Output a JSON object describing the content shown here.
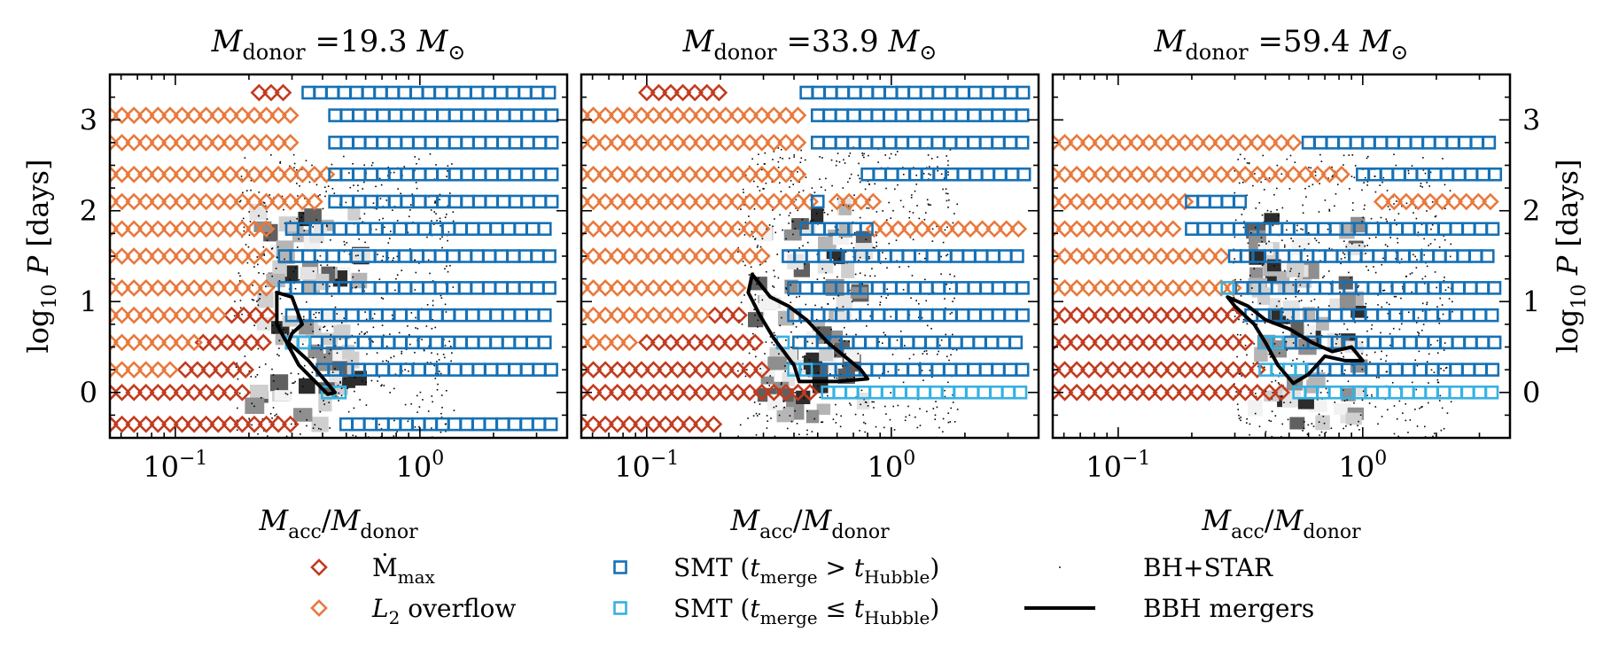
{
  "chart_data": [
    {
      "type": "scatter",
      "title": "M_donor =19.3 M⊙",
      "title_parts": {
        "lhs": "M",
        "lhs_sub": "donor",
        "rhs": " =19.3 ",
        "unit": "M",
        "unit_sub": "⊙"
      },
      "xlabel": "M_acc/M_donor",
      "ylabel": "log10 P [days]",
      "xscale": "log",
      "xlim": [
        0.054,
        4.0
      ],
      "ylim": [
        -0.5,
        3.5
      ],
      "x_ticks": [
        "10^-1",
        "10^0"
      ],
      "y_ticks": [
        0,
        1,
        2,
        3
      ],
      "series": [
        {
          "name": "Ṁmax",
          "rows": [
            {
              "y": 0.0,
              "x_from": 0.054,
              "x_to": 0.2
            },
            {
              "y": -0.35,
              "x_from": 0.054,
              "x_to": 0.3
            },
            {
              "y": 0.25,
              "x_from": 0.11,
              "x_to": 0.2
            },
            {
              "y": 0.55,
              "x_from": 0.13,
              "x_to": 0.23
            },
            {
              "y": 0.85,
              "x_from": 0.17,
              "x_to": 0.25
            },
            {
              "y": 3.3,
              "x_from": 0.22,
              "x_to": 0.3
            }
          ]
        },
        {
          "name": "L2 overflow",
          "rows": [
            {
              "y": 0.25,
              "x_from": 0.054,
              "x_to": 0.1
            },
            {
              "y": 0.55,
              "x_from": 0.054,
              "x_to": 0.12
            },
            {
              "y": 0.85,
              "x_from": 0.054,
              "x_to": 0.16
            },
            {
              "y": 1.15,
              "x_from": 0.054,
              "x_to": 0.24
            },
            {
              "y": 1.5,
              "x_from": 0.054,
              "x_to": 0.25
            },
            {
              "y": 1.8,
              "x_from": 0.054,
              "x_to": 0.25
            },
            {
              "y": 2.1,
              "x_from": 0.054,
              "x_to": 0.4
            },
            {
              "y": 2.4,
              "x_from": 0.054,
              "x_to": 0.42
            },
            {
              "y": 2.75,
              "x_from": 0.054,
              "x_to": 0.3
            },
            {
              "y": 3.05,
              "x_from": 0.054,
              "x_to": 0.3
            }
          ]
        },
        {
          "name": "SMT (t_merge > t_Hubble)",
          "rows": [
            {
              "y": -0.35,
              "x_from": 0.5,
              "x_to": 3.6
            },
            {
              "y": 0.25,
              "x_from": 0.4,
              "x_to": 3.6
            },
            {
              "y": 0.55,
              "x_from": 0.3,
              "x_to": 3.6
            },
            {
              "y": 0.85,
              "x_from": 0.3,
              "x_to": 3.6
            },
            {
              "y": 1.15,
              "x_from": 0.28,
              "x_to": 3.6
            },
            {
              "y": 1.5,
              "x_from": 0.28,
              "x_to": 3.6
            },
            {
              "y": 1.8,
              "x_from": 0.3,
              "x_to": 3.6
            },
            {
              "y": 2.1,
              "x_from": 0.45,
              "x_to": 3.6
            },
            {
              "y": 2.4,
              "x_from": 0.45,
              "x_to": 3.6
            },
            {
              "y": 2.75,
              "x_from": 0.45,
              "x_to": 3.6
            },
            {
              "y": 3.05,
              "x_from": 0.45,
              "x_to": 3.6
            },
            {
              "y": 3.3,
              "x_from": 0.35,
              "x_to": 3.6
            }
          ]
        },
        {
          "name": "SMT (t_merge ≤ t_Hubble)",
          "rows": [
            {
              "y": 0.0,
              "x_from": 0.42,
              "x_to": 0.48
            },
            {
              "y": 0.55,
              "x_from": 0.3,
              "x_to": 0.35
            }
          ]
        }
      ],
      "bbh_contour": [
        [
          0.26,
          1.1
        ],
        [
          0.3,
          1.05
        ],
        [
          0.33,
          0.75
        ],
        [
          0.3,
          0.65
        ],
        [
          0.29,
          0.55
        ],
        [
          0.35,
          0.35
        ],
        [
          0.45,
          0.0
        ],
        [
          0.42,
          -0.02
        ],
        [
          0.32,
          0.3
        ],
        [
          0.26,
          0.75
        ],
        [
          0.26,
          1.1
        ]
      ]
    },
    {
      "type": "scatter",
      "title": "M_donor =33.9 M⊙",
      "title_parts": {
        "lhs": "M",
        "lhs_sub": "donor",
        "rhs": " =33.9 ",
        "unit": "M",
        "unit_sub": "⊙"
      },
      "xlabel": "M_acc/M_donor",
      "xscale": "log",
      "xlim": [
        0.054,
        4.0
      ],
      "ylim": [
        -0.5,
        3.5
      ],
      "x_ticks": [
        "10^-1",
        "10^0"
      ],
      "series": [
        {
          "name": "Ṁmax",
          "rows": [
            {
              "y": -0.35,
              "x_from": 0.054,
              "x_to": 0.19
            },
            {
              "y": 0.0,
              "x_from": 0.054,
              "x_to": 0.5
            },
            {
              "y": 0.25,
              "x_from": 0.054,
              "x_to": 0.32
            },
            {
              "y": 0.55,
              "x_from": 0.1,
              "x_to": 0.28
            },
            {
              "y": 0.85,
              "x_from": 0.19,
              "x_to": 0.26
            },
            {
              "y": 3.3,
              "x_from": 0.1,
              "x_to": 0.21
            }
          ]
        },
        {
          "name": "L2 overflow",
          "rows": [
            {
              "y": 0.55,
              "x_from": 0.054,
              "x_to": 0.09
            },
            {
              "y": 0.85,
              "x_from": 0.054,
              "x_to": 0.17
            },
            {
              "y": 1.15,
              "x_from": 0.054,
              "x_to": 0.26
            },
            {
              "y": 1.5,
              "x_from": 0.054,
              "x_to": 0.3
            },
            {
              "y": 1.8,
              "x_from": 0.054,
              "x_to": 0.3
            },
            {
              "y": 1.8,
              "x_from": 0.85,
              "x_to": 3.6
            },
            {
              "y": 2.1,
              "x_from": 0.054,
              "x_to": 0.5
            },
            {
              "y": 2.1,
              "x_from": 0.6,
              "x_to": 0.85
            },
            {
              "y": 2.4,
              "x_from": 0.054,
              "x_to": 0.42
            },
            {
              "y": 2.75,
              "x_from": 0.054,
              "x_to": 0.45
            },
            {
              "y": 3.05,
              "x_from": 0.054,
              "x_to": 0.45
            }
          ]
        },
        {
          "name": "SMT (t_merge > t_Hubble)",
          "rows": [
            {
              "y": 0.25,
              "x_from": 0.5,
              "x_to": 3.6
            },
            {
              "y": 0.55,
              "x_from": 0.42,
              "x_to": 3.6
            },
            {
              "y": 0.85,
              "x_from": 0.4,
              "x_to": 3.6
            },
            {
              "y": 1.15,
              "x_from": 0.4,
              "x_to": 3.6
            },
            {
              "y": 1.5,
              "x_from": 0.38,
              "x_to": 3.6
            },
            {
              "y": 1.8,
              "x_from": 0.45,
              "x_to": 0.8
            },
            {
              "y": 2.1,
              "x_from": 0.5,
              "x_to": 0.55
            },
            {
              "y": 2.4,
              "x_from": 0.8,
              "x_to": 3.6
            },
            {
              "y": 2.75,
              "x_from": 0.5,
              "x_to": 3.6
            },
            {
              "y": 3.05,
              "x_from": 0.5,
              "x_to": 3.6
            },
            {
              "y": 3.3,
              "x_from": 0.45,
              "x_to": 3.6
            }
          ]
        },
        {
          "name": "SMT (t_merge ≤ t_Hubble)",
          "rows": [
            {
              "y": 0.0,
              "x_from": 0.55,
              "x_to": 3.6
            },
            {
              "y": 0.25,
              "x_from": 0.4,
              "x_to": 0.48
            },
            {
              "y": 0.55,
              "x_from": 0.36,
              "x_to": 0.4
            }
          ]
        }
      ],
      "bbh_contour": [
        [
          0.27,
          1.3
        ],
        [
          0.32,
          1.05
        ],
        [
          0.38,
          0.95
        ],
        [
          0.45,
          0.8
        ],
        [
          0.55,
          0.55
        ],
        [
          0.75,
          0.25
        ],
        [
          0.8,
          0.15
        ],
        [
          0.6,
          0.12
        ],
        [
          0.42,
          0.12
        ],
        [
          0.4,
          0.3
        ],
        [
          0.33,
          0.6
        ],
        [
          0.29,
          0.85
        ],
        [
          0.26,
          1.1
        ],
        [
          0.27,
          1.3
        ]
      ]
    },
    {
      "type": "scatter",
      "title": "M_donor =59.4 M⊙",
      "title_parts": {
        "lhs": "M",
        "lhs_sub": "donor",
        "rhs": " =59.4 ",
        "unit": "M",
        "unit_sub": "⊙"
      },
      "xlabel": "M_acc/M_donor",
      "ylabel": "log10 P [days]",
      "xscale": "log",
      "xlim": [
        0.054,
        4.0
      ],
      "ylim": [
        -0.5,
        3.5
      ],
      "x_ticks": [
        "10^-1",
        "10^0"
      ],
      "y_ticks": [
        0,
        1,
        2,
        3
      ],
      "series": [
        {
          "name": "Ṁmax",
          "rows": [
            {
              "y": 0.0,
              "x_from": 0.054,
              "x_to": 0.5
            },
            {
              "y": 0.25,
              "x_from": 0.054,
              "x_to": 0.4
            },
            {
              "y": 0.55,
              "x_from": 0.054,
              "x_to": 0.35
            },
            {
              "y": 0.85,
              "x_from": 0.054,
              "x_to": 0.3
            }
          ]
        },
        {
          "name": "L2 overflow",
          "rows": [
            {
              "y": 1.15,
              "x_from": 0.054,
              "x_to": 0.3
            },
            {
              "y": 1.5,
              "x_from": 0.054,
              "x_to": 0.28
            },
            {
              "y": 1.8,
              "x_from": 0.054,
              "x_to": 0.18
            },
            {
              "y": 2.1,
              "x_from": 0.054,
              "x_to": 0.2
            },
            {
              "y": 2.1,
              "x_from": 1.2,
              "x_to": 3.6
            },
            {
              "y": 2.4,
              "x_from": 0.054,
              "x_to": 0.9
            },
            {
              "y": 2.75,
              "x_from": 0.054,
              "x_to": 0.55
            }
          ]
        },
        {
          "name": "SMT (t_merge > t_Hubble)",
          "rows": [
            {
              "y": 0.25,
              "x_from": 0.62,
              "x_to": 3.6
            },
            {
              "y": 0.55,
              "x_from": 0.45,
              "x_to": 3.6
            },
            {
              "y": 0.85,
              "x_from": 0.35,
              "x_to": 3.6
            },
            {
              "y": 1.15,
              "x_from": 0.32,
              "x_to": 3.6
            },
            {
              "y": 1.5,
              "x_from": 0.3,
              "x_to": 3.6
            },
            {
              "y": 1.8,
              "x_from": 0.2,
              "x_to": 3.6
            },
            {
              "y": 2.1,
              "x_from": 0.2,
              "x_to": 0.35
            },
            {
              "y": 2.4,
              "x_from": 1.0,
              "x_to": 3.6
            },
            {
              "y": 2.75,
              "x_from": 0.6,
              "x_to": 3.6
            }
          ]
        },
        {
          "name": "SMT (t_merge ≤ t_Hubble)",
          "rows": [
            {
              "y": 0.0,
              "x_from": 0.55,
              "x_to": 3.6
            },
            {
              "y": 0.25,
              "x_from": 0.4,
              "x_to": 0.58
            },
            {
              "y": 0.55,
              "x_from": 0.4,
              "x_to": 0.45
            },
            {
              "y": 1.15,
              "x_from": 0.28,
              "x_to": 0.31
            }
          ]
        }
      ],
      "bbh_contour": [
        [
          0.28,
          1.05
        ],
        [
          0.34,
          0.95
        ],
        [
          0.4,
          0.8
        ],
        [
          0.5,
          0.7
        ],
        [
          0.62,
          0.55
        ],
        [
          0.75,
          0.45
        ],
        [
          0.9,
          0.5
        ],
        [
          1.0,
          0.35
        ],
        [
          0.85,
          0.35
        ],
        [
          0.7,
          0.4
        ],
        [
          0.6,
          0.2
        ],
        [
          0.52,
          0.1
        ],
        [
          0.45,
          0.3
        ],
        [
          0.4,
          0.55
        ],
        [
          0.36,
          0.75
        ],
        [
          0.3,
          0.95
        ],
        [
          0.28,
          1.05
        ]
      ]
    }
  ],
  "colors": {
    "mdot_max": "#c23b1e",
    "l2_overflow": "#e8793c",
    "smt_long": "#1671b5",
    "smt_short": "#37b1e2",
    "bh_star": "#000000",
    "bbh": "#000000"
  },
  "legend": {
    "position": "bottom",
    "entries": [
      {
        "key": "mdot",
        "symbol": "diamond",
        "parts": [
          {
            "t": "Ṁ"
          },
          {
            "t": "max",
            "sub": true
          }
        ]
      },
      {
        "key": "l2",
        "symbol": "diamond",
        "parts": [
          {
            "t": "L"
          },
          {
            "t": "2",
            "sub": true
          },
          {
            "t": " overflow"
          }
        ]
      },
      {
        "key": "smt1",
        "symbol": "square",
        "parts": [
          {
            "t": "SMT ("
          },
          {
            "t": "t"
          },
          {
            "t": "merge",
            "sub": true
          },
          {
            "t": " > "
          },
          {
            "t": "t"
          },
          {
            "t": "Hubble",
            "sub": true
          },
          {
            "t": ")"
          }
        ]
      },
      {
        "key": "smt2",
        "symbol": "square",
        "parts": [
          {
            "t": "SMT ("
          },
          {
            "t": "t"
          },
          {
            "t": "merge",
            "sub": true
          },
          {
            "t": " ≤ "
          },
          {
            "t": "t"
          },
          {
            "t": "Hubble",
            "sub": true
          },
          {
            "t": ")"
          }
        ]
      },
      {
        "key": "bhstar",
        "symbol": "dots",
        "parts": [
          {
            "t": "BH+STAR"
          }
        ]
      },
      {
        "key": "bbh",
        "symbol": "line",
        "parts": [
          {
            "t": "BBH mergers"
          }
        ]
      }
    ]
  }
}
